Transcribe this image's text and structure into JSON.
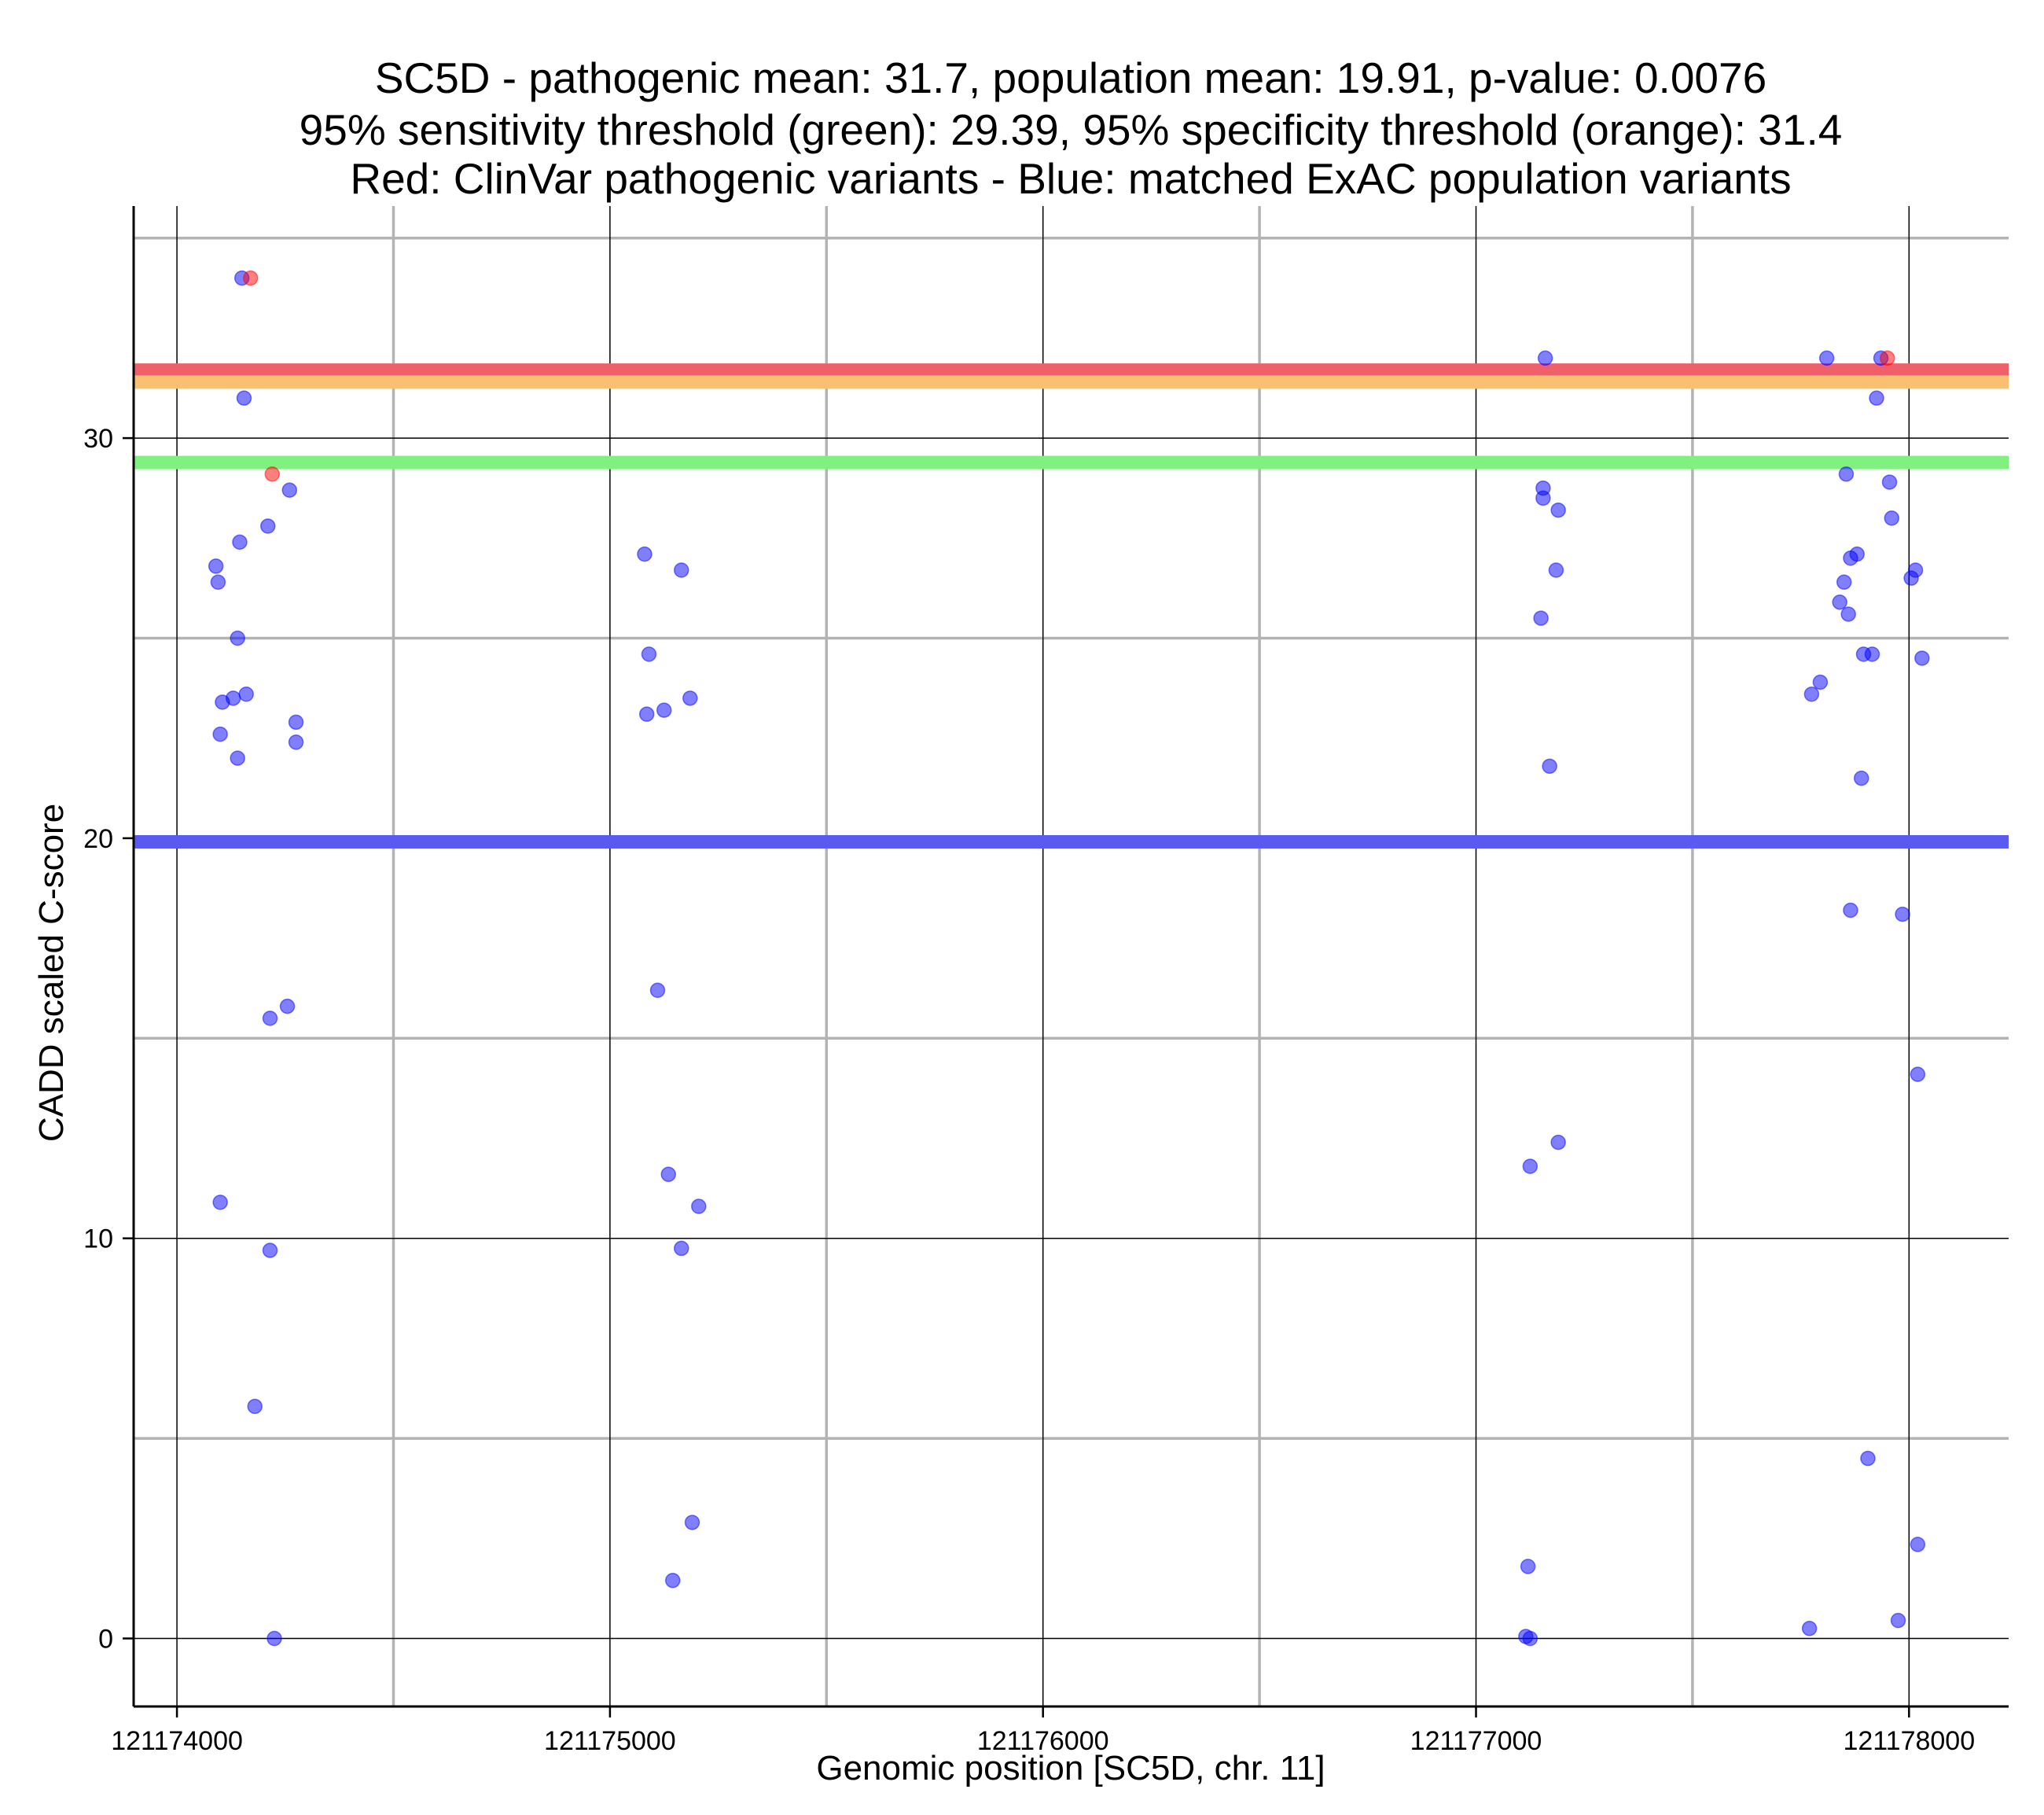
{
  "chart_data": {
    "type": "scatter",
    "title_lines": [
      "SC5D - pathogenic mean: 31.7, population mean: 19.91, p-value: 0.0076",
      "95% sensitivity threshold (green): 29.39, 95% specificity threshold (orange): 31.4",
      "Red: ClinVar pathogenic variants - Blue: matched ExAC population variants"
    ],
    "xlabel": "Genomic position [SC5D, chr. 11]",
    "ylabel": "CADD scaled C-score",
    "xlim": [
      121173900,
      121178230
    ],
    "ylim": [
      -1.7,
      35.8
    ],
    "x_ticks": [
      121174000,
      121175000,
      121176000,
      121177000,
      121178000
    ],
    "x_tick_labels": [
      "121174000",
      "121175000",
      "121176000",
      "121177000",
      "121178000"
    ],
    "x_minor_grid": [
      121174500,
      121175500,
      121176500,
      121177500
    ],
    "y_ticks": [
      0,
      10,
      20,
      30
    ],
    "y_tick_labels": [
      "0",
      "10",
      "20",
      "30"
    ],
    "y_minor_grid": [
      5,
      15,
      25,
      35
    ],
    "grid": true,
    "reference_lines": [
      {
        "value": 31.7,
        "color": "#f0606a"
      },
      {
        "value": 31.4,
        "color": "#f8c070"
      },
      {
        "value": 29.39,
        "color": "#80f080"
      },
      {
        "value": 19.91,
        "color": "#5a5af0"
      }
    ],
    "series": [
      {
        "color": "#ff0000",
        "points": [
          [
            121174170,
            34.0
          ],
          [
            121174220,
            29.1
          ],
          [
            121177950,
            32.0
          ]
        ]
      },
      {
        "color": "#0000ff",
        "points": [
          [
            121174150,
            34.0
          ],
          [
            121174155,
            31.0
          ],
          [
            121174260,
            28.7
          ],
          [
            121174210,
            27.8
          ],
          [
            121174090,
            26.8
          ],
          [
            121174145,
            27.4
          ],
          [
            121174095,
            26.4
          ],
          [
            121174140,
            25.0
          ],
          [
            121174160,
            23.6
          ],
          [
            121174130,
            23.5
          ],
          [
            121174105,
            23.4
          ],
          [
            121174275,
            22.9
          ],
          [
            121174100,
            22.6
          ],
          [
            121174275,
            22.4
          ],
          [
            121174140,
            22.0
          ],
          [
            121174255,
            15.8
          ],
          [
            121174215,
            15.5
          ],
          [
            121174100,
            10.9
          ],
          [
            121174215,
            9.7
          ],
          [
            121174180,
            5.8
          ],
          [
            121174225,
            0.0
          ],
          [
            121175080,
            27.1
          ],
          [
            121175165,
            26.7
          ],
          [
            121175090,
            24.6
          ],
          [
            121175185,
            23.5
          ],
          [
            121175125,
            23.2
          ],
          [
            121175085,
            23.1
          ],
          [
            121175110,
            16.2
          ],
          [
            121175135,
            11.6
          ],
          [
            121175205,
            10.8
          ],
          [
            121175165,
            9.75
          ],
          [
            121175190,
            2.9
          ],
          [
            121175145,
            1.45
          ],
          [
            121177160,
            32.0
          ],
          [
            121177155,
            28.75
          ],
          [
            121177155,
            28.5
          ],
          [
            121177190,
            28.2
          ],
          [
            121177185,
            26.7
          ],
          [
            121177150,
            25.5
          ],
          [
            121177170,
            21.8
          ],
          [
            121177190,
            12.4
          ],
          [
            121177125,
            11.8
          ],
          [
            121177120,
            1.8
          ],
          [
            121177115,
            0.05
          ],
          [
            121177125,
            0.0
          ],
          [
            121177810,
            32.0
          ],
          [
            121177935,
            32.0
          ],
          [
            121177925,
            31.0
          ],
          [
            121177855,
            29.1
          ],
          [
            121177955,
            28.9
          ],
          [
            121177960,
            28.0
          ],
          [
            121177880,
            27.1
          ],
          [
            121177865,
            27.0
          ],
          [
            121178015,
            26.7
          ],
          [
            121178005,
            26.5
          ],
          [
            121177850,
            26.4
          ],
          [
            121177840,
            25.9
          ],
          [
            121177860,
            25.6
          ],
          [
            121177895,
            24.6
          ],
          [
            121177915,
            24.6
          ],
          [
            121178030,
            24.5
          ],
          [
            121177795,
            23.9
          ],
          [
            121177775,
            23.6
          ],
          [
            121177890,
            21.5
          ],
          [
            121177865,
            18.2
          ],
          [
            121177985,
            18.1
          ],
          [
            121178020,
            14.1
          ],
          [
            121177905,
            4.5
          ],
          [
            121178020,
            2.35
          ],
          [
            121177975,
            0.45
          ],
          [
            121177770,
            0.25
          ]
        ]
      }
    ]
  }
}
